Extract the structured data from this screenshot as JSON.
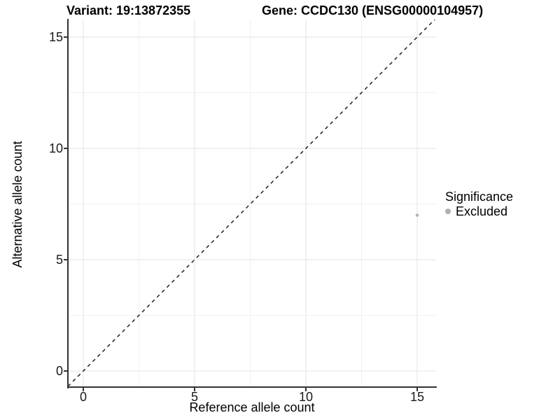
{
  "figure": {
    "title_variant": "Variant: 19:13872355",
    "title_gene": "Gene: CCDC130 (ENSG00000104957)"
  },
  "axes": {
    "x_label": "Reference allele count",
    "y_label": "Alternative allele count",
    "x_ticks": [
      "0",
      "5",
      "10",
      "15"
    ],
    "y_ticks": [
      "0",
      "5",
      "10",
      "15"
    ]
  },
  "legend": {
    "title": "Significance",
    "items": [
      {
        "label": "Excluded",
        "color": "#b0b0b0"
      }
    ]
  },
  "colors": {
    "point": "#b5b5b5",
    "grid_major": "#e3e3e3",
    "grid_minor": "#f1f1f1",
    "axis": "#333333",
    "identity_line": "#111111"
  },
  "chart_data": {
    "type": "scatter",
    "title": "Variant: 19:13872355 — Gene: CCDC130 (ENSG00000104957)",
    "xlabel": "Reference allele count",
    "ylabel": "Alternative allele count",
    "xlim": [
      -0.7,
      15.8
    ],
    "ylim": [
      -0.7,
      15.8
    ],
    "x_tick_values": [
      0,
      5,
      10,
      15
    ],
    "y_tick_values": [
      0,
      5,
      10,
      15
    ],
    "grid": {
      "major": [
        0,
        5,
        10,
        15
      ],
      "minor": [
        2.5,
        7.5,
        12.5
      ]
    },
    "identity_line": {
      "equation": "y = x",
      "style": "dashed",
      "color": "#111111"
    },
    "series": [
      {
        "name": "Excluded",
        "color": "#b5b5b5",
        "points": [
          {
            "x": 15,
            "y": 7
          }
        ]
      }
    ],
    "legend": {
      "title": "Significance",
      "position": "right",
      "entries": [
        "Excluded"
      ]
    }
  }
}
